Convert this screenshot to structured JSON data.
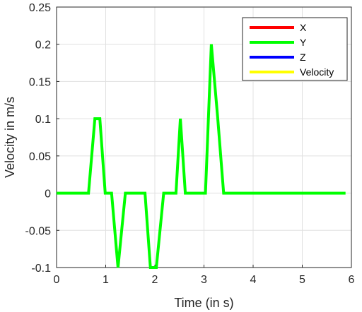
{
  "chart_data": {
    "type": "line",
    "title": "",
    "xlabel": "Time (in s)",
    "ylabel": "Velocity in m/s",
    "xlim": [
      0,
      6
    ],
    "ylim": [
      -0.1,
      0.25
    ],
    "xticks": [
      "0",
      "1",
      "2",
      "3",
      "4",
      "5",
      "6"
    ],
    "yticks": [
      "-0.1",
      "-0.05",
      "0",
      "0.05",
      "0.1",
      "0.15",
      "0.2",
      "0.25"
    ],
    "grid": true,
    "legend_position": "top-right",
    "series": [
      {
        "name": "X",
        "color": "#ff0000",
        "x": [],
        "y": []
      },
      {
        "name": "Y",
        "color": "#00ff00",
        "x": [
          0,
          0.65,
          0.78,
          0.88,
          0.99,
          1.12,
          1.25,
          1.4,
          1.8,
          1.91,
          2.03,
          2.18,
          2.43,
          2.52,
          2.62,
          3.03,
          3.15,
          3.28,
          3.4,
          5.88
        ],
        "y": [
          0,
          0,
          0.1,
          0.1,
          0,
          0,
          -0.1,
          0,
          0,
          -0.1,
          -0.1,
          0,
          0,
          0.1,
          0,
          0,
          0.2,
          0.1,
          0,
          0
        ]
      },
      {
        "name": "Z",
        "color": "#0000ff",
        "x": [],
        "y": []
      },
      {
        "name": "Velocity",
        "color": "#ffff00",
        "x": [],
        "y": []
      }
    ]
  }
}
